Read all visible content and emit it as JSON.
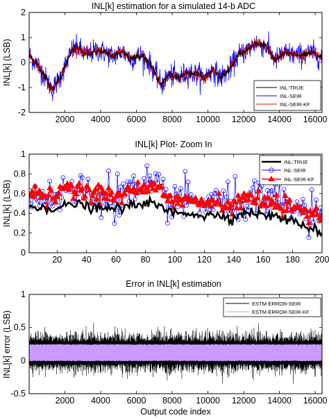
{
  "chart_data": [
    {
      "type": "line",
      "title": "INL[k] estimation for a simulated 14-b ADC",
      "xlabel": "",
      "ylabel": "INL[k] (LSB)",
      "xlim": [
        1,
        16384
      ],
      "ylim": [
        -2,
        2
      ],
      "xticks": [
        2000,
        4000,
        6000,
        8000,
        10000,
        12000,
        14000,
        16000
      ],
      "yticks": [
        -2,
        -1,
        0,
        1,
        2
      ],
      "legend": "bottom-right",
      "trend": {
        "x": [
          0,
          500,
          1300,
          1800,
          2400,
          2700,
          3200,
          3800,
          4200,
          4700,
          5200,
          5700,
          6300,
          6800,
          7400,
          7800,
          8400,
          8900,
          9500,
          9800,
          10300,
          10700,
          11200,
          11700,
          12200,
          12700,
          13300,
          13800,
          14300,
          14800,
          15400,
          15800,
          16384
        ],
        "y": [
          0.3,
          -0.1,
          -1.1,
          -0.5,
          0.5,
          0.6,
          0.3,
          0.5,
          0.4,
          0.25,
          0.45,
          0.15,
          0.3,
          -0.1,
          -0.9,
          -0.5,
          -0.6,
          -0.4,
          -0.5,
          -0.6,
          -0.3,
          -0.6,
          -0.3,
          0.3,
          0.5,
          0.8,
          0.6,
          0.1,
          0.4,
          0.3,
          0.3,
          0.4,
          0.2
        ]
      },
      "series": [
        {
          "name": "INL-TRUE",
          "color": "#000000",
          "noise": 0.12
        },
        {
          "name": "INL-SEIR",
          "color": "#0000ff",
          "noise": 0.38
        },
        {
          "name": "INL-SEIR-KF",
          "color": "#ff0000",
          "noise": 0.18
        }
      ]
    },
    {
      "type": "line",
      "title": "INL[k] Plot- Zoom In",
      "xlabel": "",
      "ylabel": "INL[k] (LSB)",
      "xlim": [
        1,
        200
      ],
      "ylim": [
        0,
        1
      ],
      "xticks": [
        20,
        40,
        60,
        80,
        100,
        120,
        140,
        160,
        180,
        200
      ],
      "yticks": [
        0,
        0.2,
        0.4,
        0.6,
        0.8,
        1
      ],
      "legend": "top-right",
      "trend": {
        "x": [
          1,
          10,
          20,
          30,
          40,
          50,
          60,
          70,
          80,
          90,
          100,
          110,
          120,
          130,
          140,
          150,
          160,
          170,
          180,
          190,
          200
        ],
        "y": [
          0.46,
          0.47,
          0.44,
          0.5,
          0.47,
          0.44,
          0.45,
          0.47,
          0.52,
          0.46,
          0.4,
          0.41,
          0.37,
          0.39,
          0.35,
          0.42,
          0.38,
          0.37,
          0.31,
          0.27,
          0.2
        ]
      },
      "series": [
        {
          "name": "INL-TRUE",
          "color": "#000000",
          "offset": 0,
          "noise": 0.03
        },
        {
          "name": "INL-SEIR",
          "color": "#0000ff",
          "offset": 0.13,
          "noise": 0.17
        },
        {
          "name": "INL-SEIR-KF",
          "color": "#ff0000",
          "offset": 0.14,
          "noise": 0.06
        }
      ]
    },
    {
      "type": "line",
      "title": "Error in INL[k] estimation",
      "xlabel": "Output code index",
      "ylabel": "INL[k] error (LSB)",
      "xlim": [
        1,
        16384
      ],
      "ylim": [
        -0.5,
        1
      ],
      "xticks": [
        2000,
        4000,
        6000,
        8000,
        10000,
        12000,
        14000,
        16000
      ],
      "yticks": [
        -0.5,
        0,
        0.5,
        1
      ],
      "legend": "top-right",
      "series": [
        {
          "name": "ESTM-ERROR-SEIR",
          "color": "#000000",
          "center": 0.12,
          "spread": 0.24
        },
        {
          "name": "ESTM-ERROR-SEIR-KF",
          "color": "#cc99ff",
          "center": 0.12,
          "spread": 0.13
        }
      ]
    }
  ]
}
